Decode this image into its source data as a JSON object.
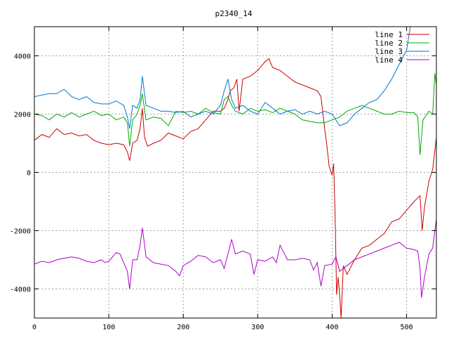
{
  "chart_data": {
    "type": "line",
    "title": "p2340_14",
    "xlabel": "",
    "ylabel": "",
    "xlim": [
      0,
      540
    ],
    "ylim": [
      -5000,
      5000
    ],
    "x_ticks": [
      0,
      100,
      200,
      300,
      400,
      500
    ],
    "y_ticks": [
      -4000,
      -2000,
      0,
      2000,
      4000
    ],
    "grid": true,
    "legend_position": "top-right",
    "series": [
      {
        "name": "line 1",
        "color": "#cc0000",
        "points": [
          [
            0,
            1100
          ],
          [
            10,
            1300
          ],
          [
            20,
            1200
          ],
          [
            30,
            1500
          ],
          [
            40,
            1300
          ],
          [
            50,
            1350
          ],
          [
            60,
            1250
          ],
          [
            70,
            1300
          ],
          [
            80,
            1100
          ],
          [
            90,
            1000
          ],
          [
            100,
            950
          ],
          [
            110,
            1000
          ],
          [
            120,
            950
          ],
          [
            125,
            700
          ],
          [
            128,
            400
          ],
          [
            132,
            1000
          ],
          [
            138,
            1100
          ],
          [
            142,
            1500
          ],
          [
            145,
            2200
          ],
          [
            148,
            1200
          ],
          [
            152,
            900
          ],
          [
            160,
            1000
          ],
          [
            170,
            1100
          ],
          [
            180,
            1350
          ],
          [
            190,
            1250
          ],
          [
            200,
            1150
          ],
          [
            210,
            1400
          ],
          [
            220,
            1500
          ],
          [
            230,
            1800
          ],
          [
            240,
            2100
          ],
          [
            250,
            2100
          ],
          [
            255,
            2200
          ],
          [
            260,
            2500
          ],
          [
            263,
            2800
          ],
          [
            268,
            2900
          ],
          [
            272,
            3200
          ],
          [
            275,
            2100
          ],
          [
            280,
            3200
          ],
          [
            290,
            3300
          ],
          [
            300,
            3500
          ],
          [
            310,
            3800
          ],
          [
            315,
            3900
          ],
          [
            320,
            3600
          ],
          [
            330,
            3500
          ],
          [
            340,
            3300
          ],
          [
            350,
            3100
          ],
          [
            360,
            3000
          ],
          [
            370,
            2900
          ],
          [
            380,
            2800
          ],
          [
            385,
            2600
          ],
          [
            390,
            1500
          ],
          [
            393,
            900
          ],
          [
            396,
            200
          ],
          [
            400,
            -100
          ],
          [
            402,
            300
          ],
          [
            404,
            -1500
          ],
          [
            406,
            -4200
          ],
          [
            408,
            -3600
          ],
          [
            410,
            -4200
          ],
          [
            412,
            -5000
          ],
          [
            415,
            -3200
          ],
          [
            420,
            -3500
          ],
          [
            430,
            -3000
          ],
          [
            440,
            -2600
          ],
          [
            450,
            -2500
          ],
          [
            460,
            -2300
          ],
          [
            470,
            -2100
          ],
          [
            480,
            -1700
          ],
          [
            490,
            -1600
          ],
          [
            500,
            -1300
          ],
          [
            510,
            -1000
          ],
          [
            518,
            -800
          ],
          [
            521,
            -2000
          ],
          [
            524,
            -1200
          ],
          [
            530,
            -300
          ],
          [
            535,
            100
          ],
          [
            540,
            1200
          ]
        ]
      },
      {
        "name": "line 2",
        "color": "#00aa00",
        "points": [
          [
            0,
            2000
          ],
          [
            10,
            1950
          ],
          [
            20,
            1800
          ],
          [
            30,
            2000
          ],
          [
            40,
            1900
          ],
          [
            50,
            2050
          ],
          [
            60,
            1900
          ],
          [
            70,
            2000
          ],
          [
            80,
            2100
          ],
          [
            90,
            1950
          ],
          [
            100,
            2000
          ],
          [
            110,
            1800
          ],
          [
            120,
            1900
          ],
          [
            125,
            1700
          ],
          [
            128,
            900
          ],
          [
            132,
            1800
          ],
          [
            138,
            2000
          ],
          [
            142,
            2300
          ],
          [
            145,
            2700
          ],
          [
            150,
            1800
          ],
          [
            160,
            1900
          ],
          [
            170,
            1850
          ],
          [
            180,
            1600
          ],
          [
            190,
            2100
          ],
          [
            200,
            2050
          ],
          [
            210,
            2100
          ],
          [
            220,
            2000
          ],
          [
            230,
            2200
          ],
          [
            240,
            2050
          ],
          [
            250,
            2000
          ],
          [
            255,
            2500
          ],
          [
            260,
            2600
          ],
          [
            265,
            2300
          ],
          [
            270,
            2100
          ],
          [
            280,
            2000
          ],
          [
            290,
            2200
          ],
          [
            300,
            2100
          ],
          [
            310,
            2150
          ],
          [
            320,
            2050
          ],
          [
            330,
            2200
          ],
          [
            340,
            2100
          ],
          [
            350,
            2000
          ],
          [
            360,
            1800
          ],
          [
            370,
            1750
          ],
          [
            380,
            1700
          ],
          [
            390,
            1700
          ],
          [
            400,
            1800
          ],
          [
            410,
            1900
          ],
          [
            420,
            2100
          ],
          [
            430,
            2200
          ],
          [
            440,
            2300
          ],
          [
            450,
            2200
          ],
          [
            460,
            2100
          ],
          [
            470,
            2000
          ],
          [
            480,
            2000
          ],
          [
            490,
            2100
          ],
          [
            500,
            2050
          ],
          [
            510,
            2050
          ],
          [
            515,
            1900
          ],
          [
            518,
            600
          ],
          [
            522,
            1800
          ],
          [
            530,
            2100
          ],
          [
            535,
            2000
          ],
          [
            538,
            3400
          ],
          [
            540,
            3000
          ]
        ]
      },
      {
        "name": "line 3",
        "color": "#0077cc",
        "points": [
          [
            0,
            2600
          ],
          [
            10,
            2650
          ],
          [
            20,
            2700
          ],
          [
            30,
            2700
          ],
          [
            40,
            2850
          ],
          [
            50,
            2600
          ],
          [
            60,
            2500
          ],
          [
            70,
            2600
          ],
          [
            80,
            2400
          ],
          [
            90,
            2350
          ],
          [
            100,
            2350
          ],
          [
            110,
            2450
          ],
          [
            120,
            2300
          ],
          [
            125,
            1900
          ],
          [
            128,
            1500
          ],
          [
            132,
            2300
          ],
          [
            138,
            2200
          ],
          [
            142,
            2500
          ],
          [
            145,
            3300
          ],
          [
            150,
            2300
          ],
          [
            160,
            2200
          ],
          [
            170,
            2100
          ],
          [
            180,
            2100
          ],
          [
            190,
            2050
          ],
          [
            200,
            2100
          ],
          [
            210,
            1900
          ],
          [
            220,
            2000
          ],
          [
            230,
            2100
          ],
          [
            240,
            2000
          ],
          [
            250,
            2300
          ],
          [
            255,
            2800
          ],
          [
            260,
            3200
          ],
          [
            265,
            2500
          ],
          [
            270,
            2200
          ],
          [
            280,
            2300
          ],
          [
            290,
            2100
          ],
          [
            300,
            2000
          ],
          [
            310,
            2400
          ],
          [
            320,
            2200
          ],
          [
            330,
            2000
          ],
          [
            340,
            2100
          ],
          [
            350,
            2150
          ],
          [
            360,
            2000
          ],
          [
            370,
            2100
          ],
          [
            380,
            2000
          ],
          [
            390,
            2100
          ],
          [
            400,
            2000
          ],
          [
            410,
            1600
          ],
          [
            420,
            1700
          ],
          [
            430,
            2000
          ],
          [
            440,
            2200
          ],
          [
            450,
            2400
          ],
          [
            460,
            2500
          ],
          [
            470,
            2800
          ],
          [
            480,
            3200
          ],
          [
            490,
            3700
          ],
          [
            500,
            4200
          ],
          [
            505,
            5000
          ]
        ]
      },
      {
        "name": "line 4",
        "color": "#aa00cc",
        "points": [
          [
            0,
            -3150
          ],
          [
            10,
            -3050
          ],
          [
            20,
            -3100
          ],
          [
            30,
            -3000
          ],
          [
            40,
            -2950
          ],
          [
            50,
            -2900
          ],
          [
            60,
            -2950
          ],
          [
            70,
            -3050
          ],
          [
            80,
            -3100
          ],
          [
            90,
            -3000
          ],
          [
            95,
            -3100
          ],
          [
            100,
            -3050
          ],
          [
            110,
            -2750
          ],
          [
            115,
            -2800
          ],
          [
            120,
            -3100
          ],
          [
            125,
            -3400
          ],
          [
            128,
            -4000
          ],
          [
            132,
            -3000
          ],
          [
            138,
            -3000
          ],
          [
            142,
            -2500
          ],
          [
            145,
            -1900
          ],
          [
            150,
            -2900
          ],
          [
            160,
            -3100
          ],
          [
            170,
            -3150
          ],
          [
            180,
            -3200
          ],
          [
            190,
            -3400
          ],
          [
            195,
            -3550
          ],
          [
            200,
            -3200
          ],
          [
            210,
            -3050
          ],
          [
            220,
            -2850
          ],
          [
            230,
            -2900
          ],
          [
            240,
            -3100
          ],
          [
            250,
            -3000
          ],
          [
            255,
            -3300
          ],
          [
            260,
            -2800
          ],
          [
            265,
            -2300
          ],
          [
            270,
            -2800
          ],
          [
            280,
            -2700
          ],
          [
            290,
            -2800
          ],
          [
            295,
            -3500
          ],
          [
            300,
            -3000
          ],
          [
            310,
            -3050
          ],
          [
            320,
            -2900
          ],
          [
            325,
            -3100
          ],
          [
            330,
            -2500
          ],
          [
            340,
            -3000
          ],
          [
            350,
            -3000
          ],
          [
            360,
            -2950
          ],
          [
            370,
            -3000
          ],
          [
            375,
            -3350
          ],
          [
            380,
            -3100
          ],
          [
            385,
            -3900
          ],
          [
            390,
            -3200
          ],
          [
            400,
            -3150
          ],
          [
            405,
            -2900
          ],
          [
            410,
            -3400
          ],
          [
            420,
            -3200
          ],
          [
            430,
            -3000
          ],
          [
            440,
            -2900
          ],
          [
            450,
            -2800
          ],
          [
            460,
            -2700
          ],
          [
            470,
            -2600
          ],
          [
            480,
            -2500
          ],
          [
            490,
            -2400
          ],
          [
            500,
            -2600
          ],
          [
            510,
            -2650
          ],
          [
            515,
            -2700
          ],
          [
            518,
            -3300
          ],
          [
            520,
            -4300
          ],
          [
            524,
            -3600
          ],
          [
            530,
            -2800
          ],
          [
            535,
            -2600
          ],
          [
            540,
            -1600
          ]
        ]
      }
    ]
  }
}
